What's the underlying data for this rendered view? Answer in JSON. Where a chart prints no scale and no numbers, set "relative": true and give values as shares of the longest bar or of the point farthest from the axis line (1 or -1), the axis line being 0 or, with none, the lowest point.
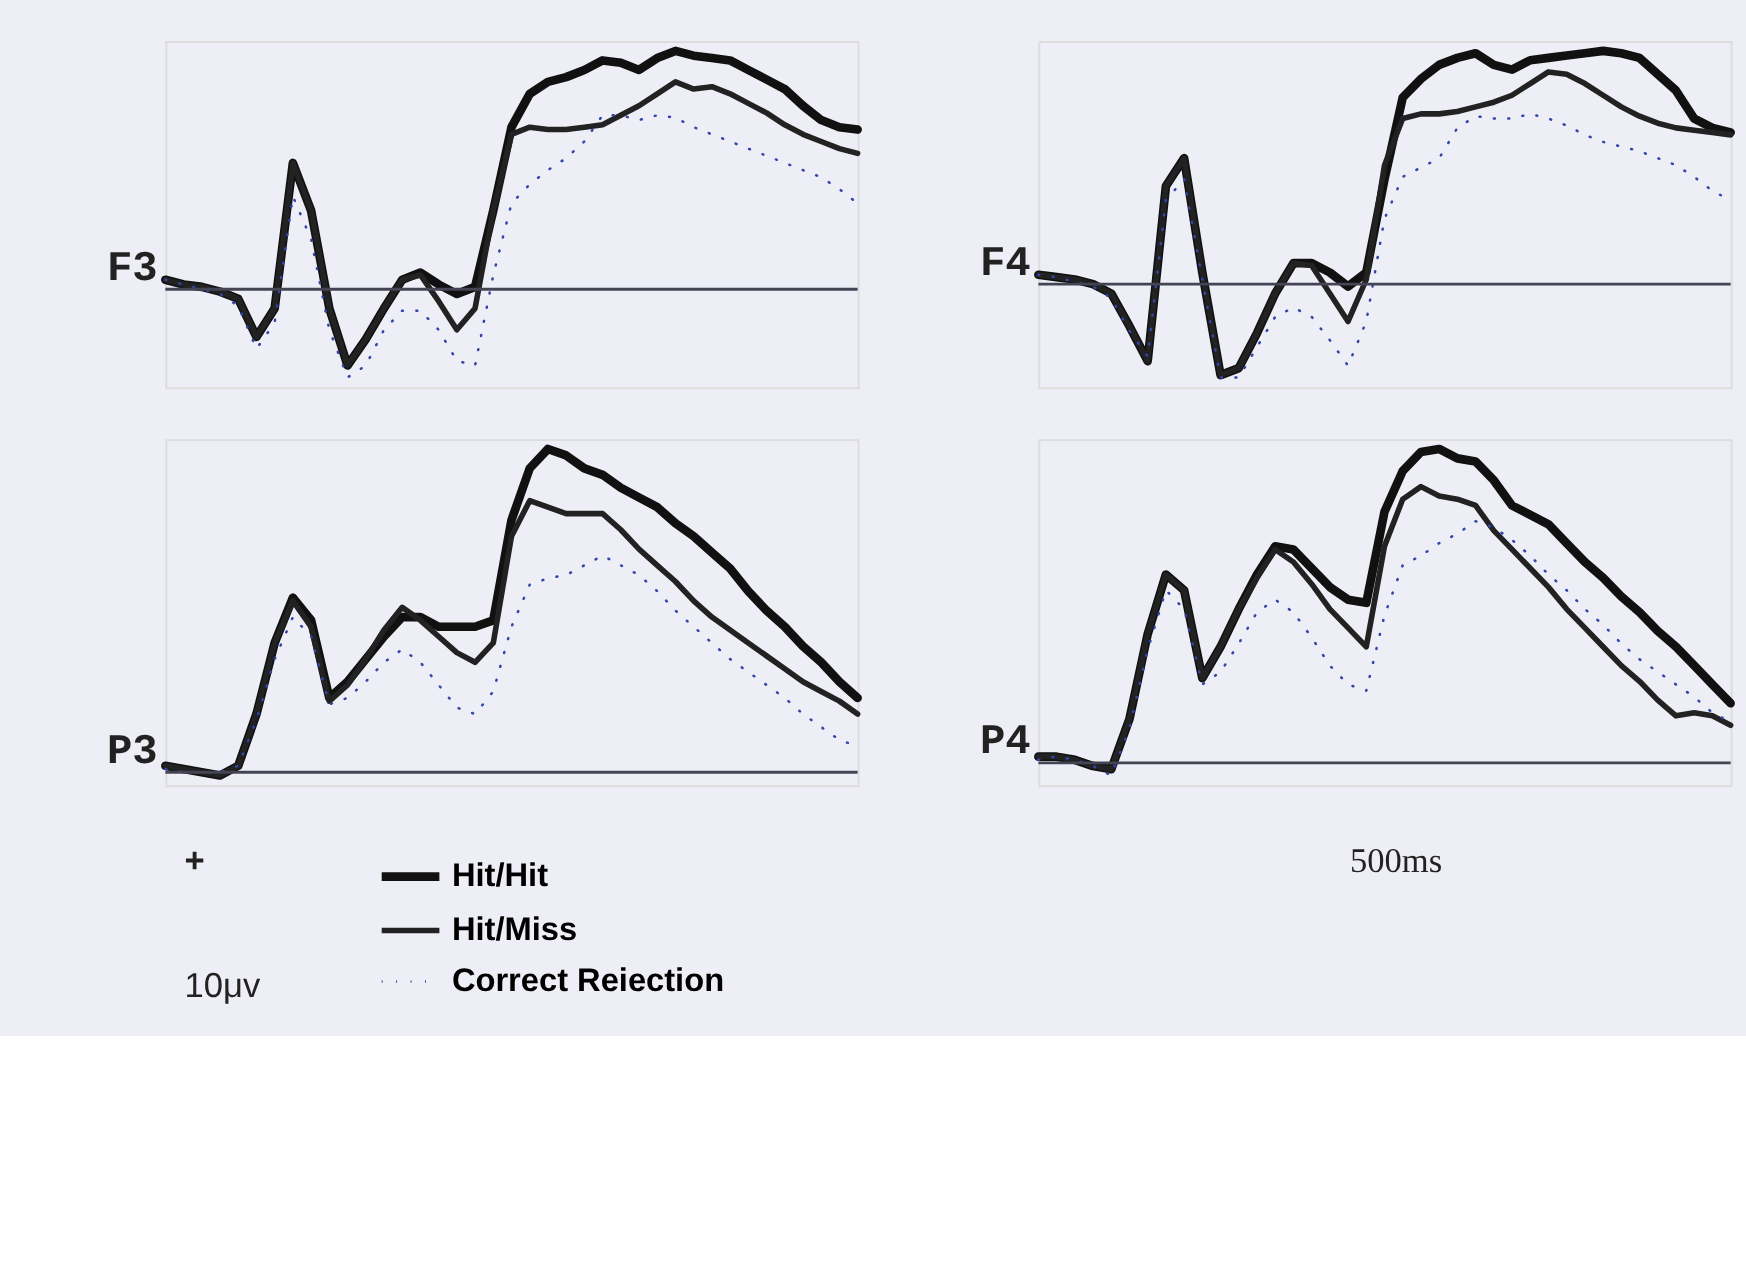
{
  "chart_data": [
    {
      "type": "line",
      "title": "F3",
      "relative": true,
      "categories": [
        null,
        null,
        null,
        null,
        null,
        null,
        null,
        null,
        null,
        null,
        null,
        null,
        null,
        null,
        null,
        null,
        null,
        null,
        null,
        null,
        null,
        null,
        null,
        null,
        null,
        null,
        null,
        null,
        null,
        null,
        null,
        null,
        null,
        null,
        null,
        null,
        null,
        null,
        null
      ],
      "ref_lines": [
        {
          "axis": "y",
          "value": 0,
          "color": "#444455"
        }
      ],
      "series": [
        {
          "color": "#111111",
          "line_style": "solid",
          "values": [
            0.04,
            0.02,
            0.01,
            -0.01,
            -0.04,
            -0.2,
            -0.08,
            0.53,
            0.33,
            -0.08,
            -0.32,
            -0.21,
            -0.08,
            0.04,
            0.07,
            0.02,
            -0.02,
            0.01,
            0.33,
            0.68,
            0.82,
            0.87,
            0.89,
            0.92,
            0.96,
            0.95,
            0.92,
            0.97,
            1,
            0.98,
            0.97,
            0.96,
            0.92,
            0.88,
            0.84,
            0.77,
            0.71,
            0.68,
            0.67
          ]
        },
        {
          "color": "#222222",
          "line_style": "solid",
          "values": [
            0.04,
            0.02,
            0.01,
            -0.01,
            -0.04,
            -0.2,
            -0.08,
            0.53,
            0.33,
            -0.08,
            -0.32,
            -0.21,
            -0.08,
            0.04,
            0.06,
            -0.05,
            -0.17,
            -0.08,
            0.33,
            0.65,
            0.68,
            0.67,
            0.67,
            0.68,
            0.69,
            0.73,
            0.77,
            0.82,
            0.87,
            0.84,
            0.85,
            0.82,
            0.78,
            0.74,
            0.69,
            0.65,
            0.62,
            0.59,
            0.57
          ]
        },
        {
          "color": "#3344aa",
          "line_style": "dotted",
          "values": [
            0.04,
            0.02,
            0,
            -0.02,
            -0.07,
            -0.25,
            -0.14,
            0.39,
            0.21,
            -0.17,
            -0.37,
            -0.32,
            -0.17,
            -0.09,
            -0.09,
            -0.17,
            -0.3,
            -0.32,
            0.06,
            0.36,
            0.44,
            0.5,
            0.55,
            0.62,
            0.73,
            0.73,
            0.71,
            0.73,
            0.72,
            0.68,
            0.65,
            0.62,
            0.59,
            0.56,
            0.53,
            0.5,
            0.47,
            0.42,
            0.36
          ]
        }
      ]
    },
    {
      "type": "line",
      "title": "F4",
      "relative": true,
      "categories": [
        null,
        null,
        null,
        null,
        null,
        null,
        null,
        null,
        null,
        null,
        null,
        null,
        null,
        null,
        null,
        null,
        null,
        null,
        null,
        null,
        null,
        null,
        null,
        null,
        null,
        null,
        null,
        null,
        null,
        null,
        null,
        null,
        null,
        null,
        null,
        null,
        null,
        null,
        null
      ],
      "ref_lines": [
        {
          "axis": "y",
          "value": 0,
          "color": "#444455"
        }
      ],
      "series": [
        {
          "color": "#111111",
          "line_style": "solid",
          "values": [
            0.04,
            0.03,
            0.02,
            0,
            -0.04,
            -0.18,
            -0.33,
            0.42,
            0.54,
            0.05,
            -0.39,
            -0.36,
            -0.21,
            -0.04,
            0.09,
            0.09,
            0.05,
            -0.01,
            0.05,
            0.45,
            0.8,
            0.88,
            0.94,
            0.97,
            0.99,
            0.94,
            0.92,
            0.96,
            0.97,
            0.98,
            0.99,
            1,
            0.99,
            0.97,
            0.9,
            0.83,
            0.71,
            0.67,
            0.65
          ]
        },
        {
          "color": "#222222",
          "line_style": "solid",
          "values": [
            0.04,
            0.03,
            0.02,
            0,
            -0.04,
            -0.18,
            -0.33,
            0.42,
            0.54,
            0.05,
            -0.39,
            -0.36,
            -0.21,
            -0.04,
            0.09,
            0.08,
            -0.04,
            -0.16,
            0.02,
            0.51,
            0.71,
            0.73,
            0.73,
            0.74,
            0.76,
            0.78,
            0.81,
            0.86,
            0.91,
            0.9,
            0.86,
            0.81,
            0.76,
            0.72,
            0.69,
            0.67,
            0.66,
            0.65,
            0.64
          ]
        },
        {
          "color": "#3344aa",
          "line_style": "dotted",
          "values": [
            0.04,
            0.03,
            0.01,
            -0.01,
            -0.06,
            -0.2,
            -0.31,
            0.36,
            0.45,
            0.02,
            -0.4,
            -0.4,
            -0.27,
            -0.14,
            -0.1,
            -0.14,
            -0.24,
            -0.35,
            -0.16,
            0.28,
            0.46,
            0.5,
            0.54,
            0.67,
            0.72,
            0.71,
            0.71,
            0.73,
            0.71,
            0.68,
            0.64,
            0.61,
            0.59,
            0.57,
            0.54,
            0.51,
            0.46,
            0.4,
            0.36
          ]
        }
      ]
    },
    {
      "type": "line",
      "title": "P3",
      "relative": true,
      "legend": "bottom",
      "annotations": [
        "+",
        "10μv"
      ],
      "categories": [
        null,
        null,
        null,
        null,
        null,
        null,
        null,
        null,
        null,
        null,
        null,
        null,
        null,
        null,
        null,
        null,
        null,
        null,
        null,
        null,
        null,
        null,
        null,
        null,
        null,
        null,
        null,
        null,
        null,
        null,
        null,
        null,
        null,
        null,
        null,
        null,
        null,
        null,
        null
      ],
      "ref_lines": [
        {
          "axis": "y",
          "value": 0,
          "color": "#444455"
        }
      ],
      "series": [
        {
          "name": "Hit/Hit",
          "color": "#111111",
          "line_style": "solid",
          "values": [
            0.02,
            0.01,
            0,
            -0.01,
            0.02,
            0.18,
            0.4,
            0.54,
            0.47,
            0.23,
            0.28,
            0.35,
            0.42,
            0.48,
            0.48,
            0.45,
            0.45,
            0.45,
            0.47,
            0.78,
            0.94,
            1,
            0.98,
            0.94,
            0.92,
            0.88,
            0.85,
            0.82,
            0.77,
            0.73,
            0.68,
            0.63,
            0.56,
            0.5,
            0.45,
            0.39,
            0.34,
            0.28,
            0.23
          ]
        },
        {
          "name": "Hit/Miss",
          "color": "#222222",
          "line_style": "solid",
          "values": [
            0.02,
            0.01,
            0,
            -0.01,
            0.02,
            0.18,
            0.4,
            0.53,
            0.45,
            0.22,
            0.27,
            0.35,
            0.44,
            0.51,
            0.47,
            0.42,
            0.37,
            0.34,
            0.4,
            0.73,
            0.84,
            0.82,
            0.8,
            0.8,
            0.8,
            0.75,
            0.69,
            0.64,
            0.59,
            0.53,
            0.48,
            0.44,
            0.4,
            0.36,
            0.32,
            0.28,
            0.25,
            0.22,
            0.18
          ]
        },
        {
          "name": "Correct Reiection",
          "color": "#3344aa",
          "line_style": "dotted",
          "values": [
            0.01,
            0,
            0,
            0,
            0.02,
            0.16,
            0.35,
            0.48,
            0.42,
            0.21,
            0.23,
            0.28,
            0.34,
            0.38,
            0.34,
            0.27,
            0.2,
            0.18,
            0.25,
            0.45,
            0.58,
            0.6,
            0.61,
            0.64,
            0.67,
            0.64,
            0.61,
            0.56,
            0.5,
            0.45,
            0.4,
            0.35,
            0.31,
            0.27,
            0.23,
            0.18,
            0.14,
            0.1,
            0.08
          ]
        }
      ]
    },
    {
      "type": "line",
      "title": "P4",
      "relative": true,
      "annotations": [
        "500ms"
      ],
      "categories": [
        null,
        null,
        null,
        null,
        null,
        null,
        null,
        null,
        null,
        null,
        null,
        null,
        null,
        null,
        null,
        null,
        null,
        null,
        null,
        null,
        null,
        null,
        null,
        null,
        null,
        null,
        null,
        null,
        null,
        null,
        null,
        null,
        null,
        null,
        null,
        null,
        null,
        null,
        null
      ],
      "ref_lines": [
        {
          "axis": "y",
          "value": 0,
          "color": "#444455"
        }
      ],
      "series": [
        {
          "color": "#111111",
          "line_style": "solid",
          "values": [
            0.02,
            0.02,
            0.01,
            -0.01,
            -0.02,
            0.14,
            0.41,
            0.6,
            0.55,
            0.27,
            0.37,
            0.49,
            0.6,
            0.69,
            0.68,
            0.62,
            0.56,
            0.52,
            0.51,
            0.8,
            0.93,
            0.99,
            1,
            0.97,
            0.96,
            0.9,
            0.82,
            0.79,
            0.76,
            0.7,
            0.64,
            0.59,
            0.53,
            0.48,
            0.42,
            0.37,
            0.31,
            0.25,
            0.19
          ]
        },
        {
          "color": "#222222",
          "line_style": "solid",
          "values": [
            0.02,
            0.02,
            0.01,
            -0.01,
            -0.02,
            0.14,
            0.41,
            0.6,
            0.55,
            0.27,
            0.37,
            0.49,
            0.59,
            0.68,
            0.64,
            0.57,
            0.49,
            0.43,
            0.37,
            0.69,
            0.84,
            0.88,
            0.85,
            0.84,
            0.82,
            0.74,
            0.68,
            0.62,
            0.56,
            0.49,
            0.43,
            0.37,
            0.31,
            0.26,
            0.2,
            0.15,
            0.16,
            0.15,
            0.12
          ]
        },
        {
          "color": "#3344aa",
          "line_style": "dotted",
          "values": [
            0.01,
            0.02,
            0.01,
            -0.01,
            -0.04,
            0.11,
            0.36,
            0.55,
            0.49,
            0.25,
            0.29,
            0.38,
            0.48,
            0.52,
            0.48,
            0.4,
            0.31,
            0.25,
            0.23,
            0.47,
            0.63,
            0.66,
            0.7,
            0.73,
            0.77,
            0.75,
            0.71,
            0.66,
            0.6,
            0.55,
            0.49,
            0.44,
            0.38,
            0.33,
            0.29,
            0.25,
            0.21,
            0.16,
            0.13
          ]
        }
      ]
    }
  ]
}
